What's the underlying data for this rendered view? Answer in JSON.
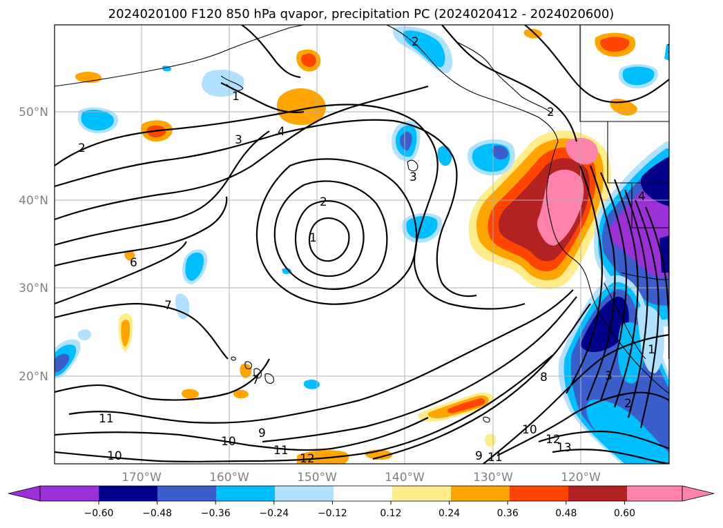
{
  "title": "2024020100 F120 850 hPa qvapor, precipitation PC (2024020412 - 2024020600)",
  "lat_ticks": [
    "50°N",
    "40°N",
    "30°N",
    "20°N"
  ],
  "lon_ticks": [
    "170°W",
    "160°W",
    "150°W",
    "140°W",
    "130°W",
    "120°W"
  ],
  "colorbar": {
    "colors": [
      "#9b30d8",
      "#00008b",
      "#3a5fcd",
      "#00bfff",
      "#b0e2ff",
      "#ffffff",
      "#ffec8b",
      "#ffa500",
      "#ff4500",
      "#b22222",
      "#ff82ab"
    ],
    "tick_labels": [
      "−0.60",
      "−0.48",
      "−0.36",
      "−0.24",
      "−0.12",
      "0.12",
      "0.24",
      "0.36",
      "0.48",
      "0.60"
    ]
  },
  "contour_labels": [
    "1",
    "2",
    "3",
    "4",
    "2",
    "3",
    "6",
    "7",
    "7",
    "1",
    "2",
    "8",
    "3",
    "2",
    "1",
    "4",
    "9",
    "10",
    "11",
    "11",
    "10",
    "11",
    "12",
    "10",
    "12",
    "13",
    "9",
    "11",
    "2",
    "1"
  ]
}
